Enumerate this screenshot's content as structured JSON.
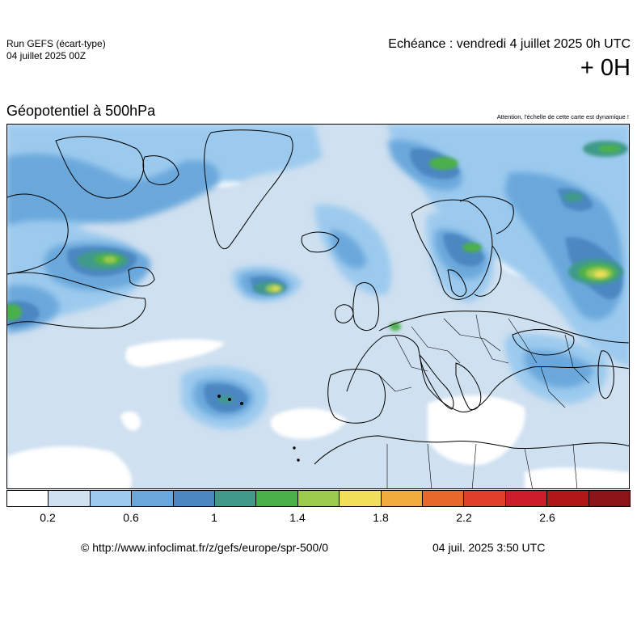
{
  "header": {
    "run_title": "Run GEFS (écart-type)",
    "run_date": "04 juillet 2025 00Z",
    "echeance": "Echéance : vendredi 4 juillet 2025 0h UTC",
    "offset": "+ 0H"
  },
  "map": {
    "title": "Géopotentiel à 500hPa",
    "note": "Attention, l'échelle de cette carte est dynamique !",
    "region": "europe",
    "background_color": "#cfe0f0",
    "coastline_color": "#000000"
  },
  "legend": {
    "colors": [
      "#ffffff",
      "#cfe0f0",
      "#9ccaee",
      "#6aa8dc",
      "#4b87c1",
      "#3f9a8a",
      "#4cb04a",
      "#9ccc4c",
      "#f0e05a",
      "#f0ac3c",
      "#e8682a",
      "#e0402a",
      "#cc1c2a",
      "#b01818",
      "#8c1418"
    ],
    "tick_labels": [
      "0.2",
      "0.6",
      "1",
      "1.4",
      "1.8",
      "2.2",
      "2.6"
    ]
  },
  "footer": {
    "copyright": "© http://www.infoclimat.fr/z/gefs/europe/spr-500/0",
    "generated": "04 juil. 2025  3:50 UTC"
  }
}
